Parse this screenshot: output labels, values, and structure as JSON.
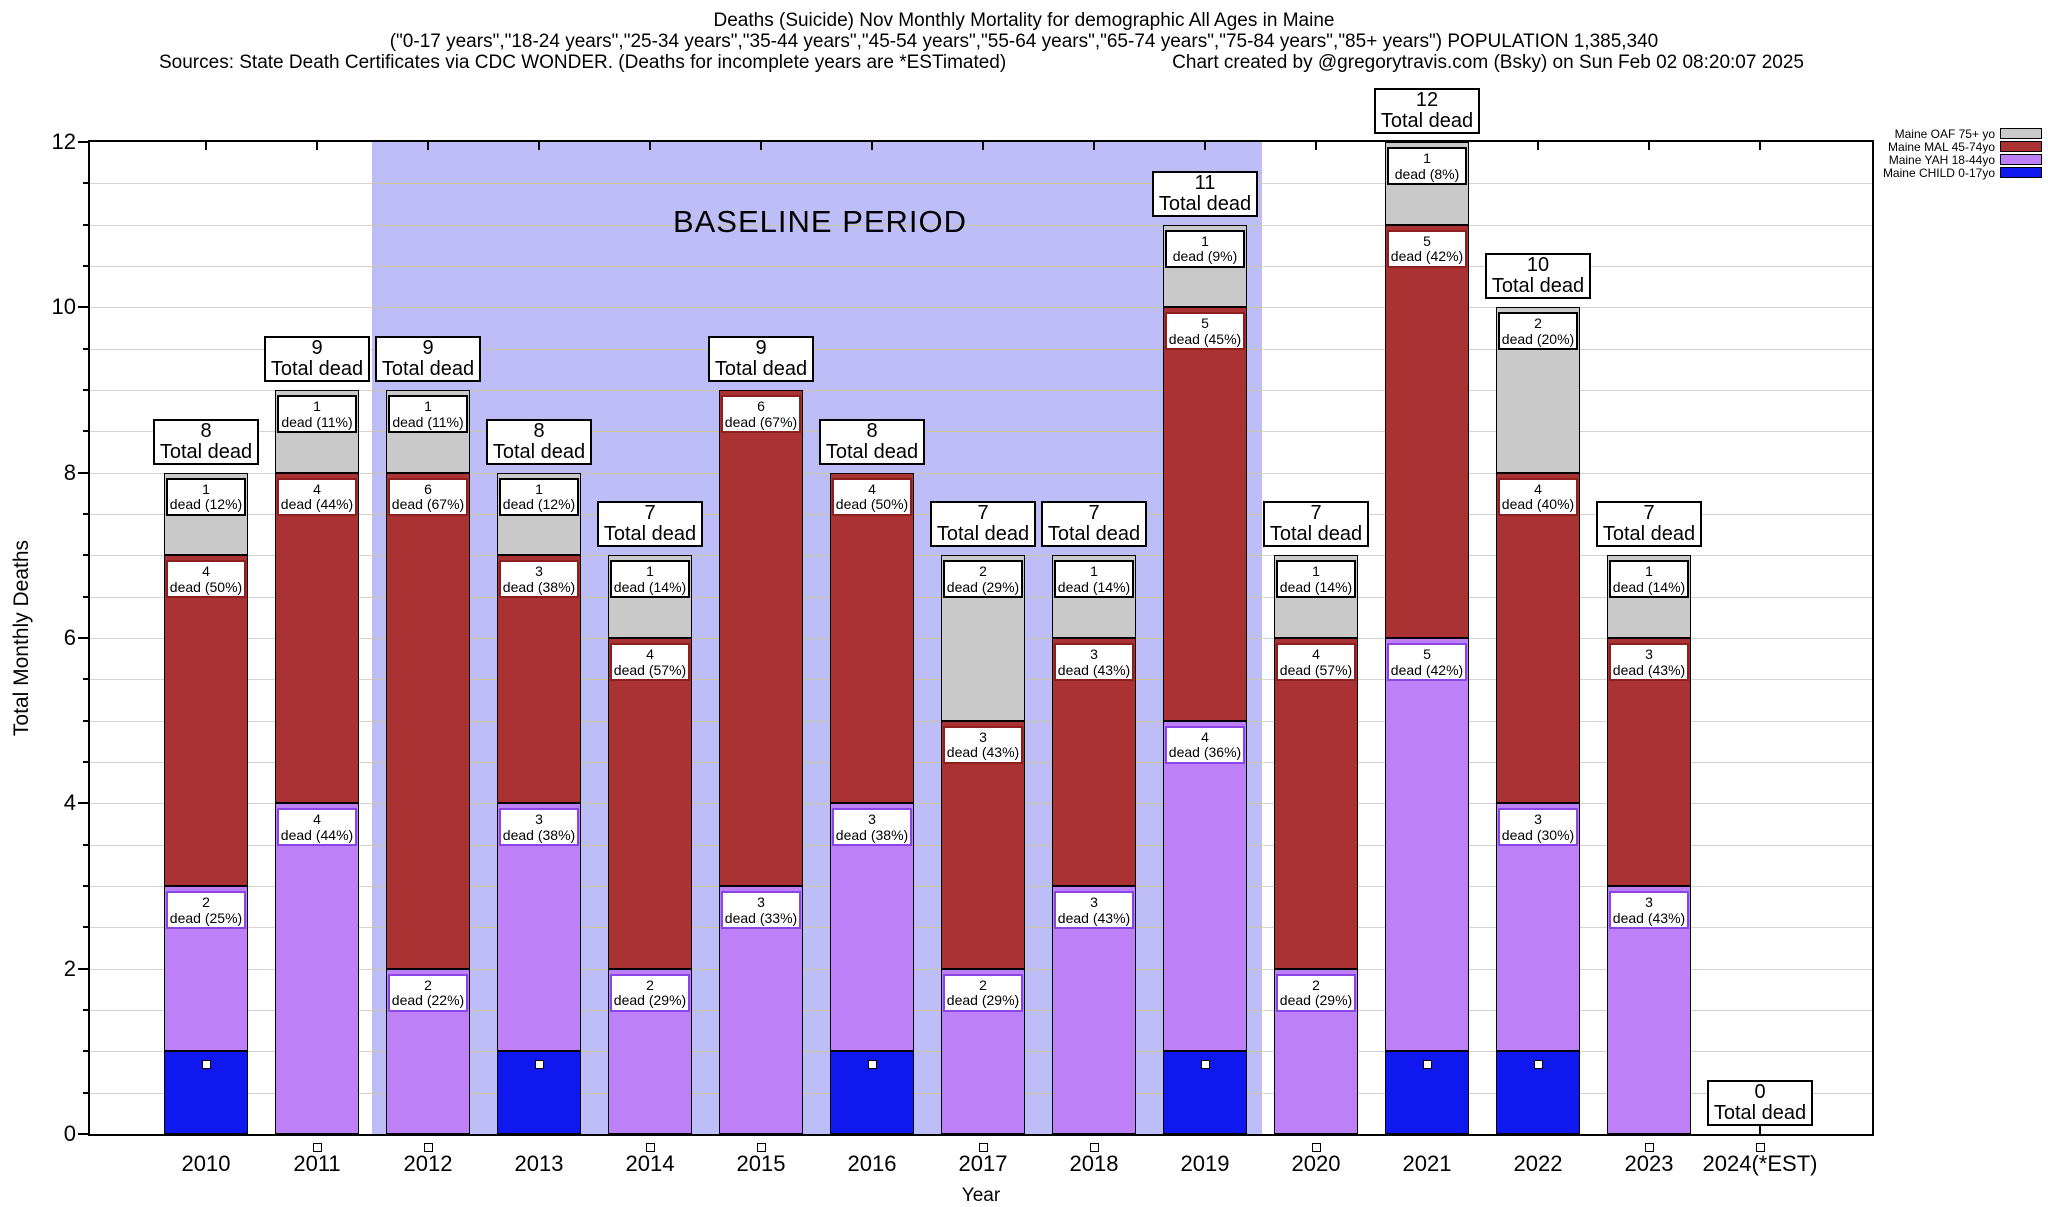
{
  "header": {
    "line1": "Deaths (Suicide) Nov Monthly Mortality for demographic All Ages in Maine",
    "line2": "(\"0-17 years\",\"18-24 years\",\"25-34 years\",\"35-44 years\",\"45-54 years\",\"55-64 years\",\"65-74 years\",\"75-84 years\",\"85+ years\") POPULATION 1,385,340",
    "line3_left": "Sources: State Death Certificates via CDC WONDER. (Deaths for incomplete years are *ESTimated)",
    "line3_right": "Chart created by @gregorytravis.com (Bsky) on Sun Feb 02 08:20:07 2025"
  },
  "legend": {
    "items": [
      {
        "key": "OAF",
        "label": "Maine OAF 75+ yo"
      },
      {
        "key": "MAL",
        "label": "Maine MAL 45-74yo"
      },
      {
        "key": "YAH",
        "label": "Maine YAH 18-44yo"
      },
      {
        "key": "CHILD",
        "label": "Maine CHILD 0-17yo"
      }
    ]
  },
  "chart_data": {
    "type": "bar",
    "subtype": "stacked",
    "title": "Deaths (Suicide) Nov Monthly Mortality for demographic All Ages in Maine",
    "xlabel": "Year",
    "ylabel": "Total Monthly Deaths",
    "ylim": [
      0,
      12
    ],
    "yticks": [
      0,
      2,
      4,
      6,
      8,
      10,
      12
    ],
    "minor_grid_step": 0.5,
    "grid": "on",
    "legend_position": "top-right",
    "total_label": "Total dead",
    "baseline": {
      "label": "BASELINE PERIOD",
      "from_year": "2012",
      "to_year": "2019"
    },
    "series_meta": {
      "CHILD": {
        "name": "Maine CHILD 0-17yo",
        "fill": "#1018f0",
        "edge": "#000000"
      },
      "YAH": {
        "name": "Maine YAH 18-44yo",
        "fill": "#bd80f7",
        "edge": "#8b45e6"
      },
      "MAL": {
        "name": "Maine MAL 45-74yo",
        "fill": "#ab3232",
        "edge": "#8e1f1f"
      },
      "OAF": {
        "name": "Maine OAF 75+ yo",
        "fill": "#c9c9c9",
        "edge": "#000000"
      }
    },
    "bars": [
      {
        "year": "2010",
        "total": 8,
        "child_marker": "in-bar",
        "segments": [
          {
            "series": "CHILD",
            "value": 1,
            "label": null
          },
          {
            "series": "YAH",
            "value": 2,
            "label": "dead (25%)"
          },
          {
            "series": "MAL",
            "value": 4,
            "label": "dead (50%)"
          },
          {
            "series": "OAF",
            "value": 1,
            "label": "dead (12%)"
          }
        ]
      },
      {
        "year": "2011",
        "total": 9,
        "child_marker": "below-axis",
        "segments": [
          {
            "series": "YAH",
            "value": 4,
            "label": "dead (44%)"
          },
          {
            "series": "MAL",
            "value": 4,
            "label": "dead (44%)"
          },
          {
            "series": "OAF",
            "value": 1,
            "label": "dead (11%)"
          }
        ]
      },
      {
        "year": "2012",
        "total": 9,
        "child_marker": "below-axis",
        "segments": [
          {
            "series": "YAH",
            "value": 2,
            "label": "dead (22%)"
          },
          {
            "series": "MAL",
            "value": 6,
            "label": "dead (67%)"
          },
          {
            "series": "OAF",
            "value": 1,
            "label": "dead (11%)"
          }
        ]
      },
      {
        "year": "2013",
        "total": 8,
        "child_marker": "in-bar",
        "segments": [
          {
            "series": "CHILD",
            "value": 1,
            "label": null
          },
          {
            "series": "YAH",
            "value": 3,
            "label": "dead (38%)"
          },
          {
            "series": "MAL",
            "value": 3,
            "label": "dead (38%)"
          },
          {
            "series": "OAF",
            "value": 1,
            "label": "dead (12%)"
          }
        ]
      },
      {
        "year": "2014",
        "total": 7,
        "child_marker": "below-axis",
        "segments": [
          {
            "series": "YAH",
            "value": 2,
            "label": "dead (29%)"
          },
          {
            "series": "MAL",
            "value": 4,
            "label": "dead (57%)"
          },
          {
            "series": "OAF",
            "value": 1,
            "label": "dead (14%)"
          }
        ]
      },
      {
        "year": "2015",
        "total": 9,
        "child_marker": "below-axis",
        "segments": [
          {
            "series": "YAH",
            "value": 3,
            "label": "dead (33%)"
          },
          {
            "series": "MAL",
            "value": 6,
            "label": "dead (67%)"
          }
        ]
      },
      {
        "year": "2016",
        "total": 8,
        "child_marker": "in-bar",
        "segments": [
          {
            "series": "CHILD",
            "value": 1,
            "label": null
          },
          {
            "series": "YAH",
            "value": 3,
            "label": "dead (38%)"
          },
          {
            "series": "MAL",
            "value": 4,
            "label": "dead (50%)"
          }
        ]
      },
      {
        "year": "2017",
        "total": 7,
        "child_marker": "below-axis",
        "segments": [
          {
            "series": "YAH",
            "value": 2,
            "label": "dead (29%)"
          },
          {
            "series": "MAL",
            "value": 3,
            "label": "dead (43%)"
          },
          {
            "series": "OAF",
            "value": 2,
            "label": "dead (29%)"
          }
        ]
      },
      {
        "year": "2018",
        "total": 7,
        "child_marker": "below-axis",
        "segments": [
          {
            "series": "YAH",
            "value": 3,
            "label": "dead (43%)"
          },
          {
            "series": "MAL",
            "value": 3,
            "label": "dead (43%)"
          },
          {
            "series": "OAF",
            "value": 1,
            "label": "dead (14%)"
          }
        ]
      },
      {
        "year": "2019",
        "total": 11,
        "child_marker": "in-bar",
        "segments": [
          {
            "series": "CHILD",
            "value": 1,
            "label": null
          },
          {
            "series": "YAH",
            "value": 4,
            "label": "dead (36%)"
          },
          {
            "series": "MAL",
            "value": 5,
            "label": "dead (45%)"
          },
          {
            "series": "OAF",
            "value": 1,
            "label": "dead (9%)"
          }
        ]
      },
      {
        "year": "2020",
        "total": 7,
        "child_marker": "below-axis",
        "segments": [
          {
            "series": "YAH",
            "value": 2,
            "label": "dead (29%)"
          },
          {
            "series": "MAL",
            "value": 4,
            "label": "dead (57%)"
          },
          {
            "series": "OAF",
            "value": 1,
            "label": "dead (14%)"
          }
        ]
      },
      {
        "year": "2021",
        "total": 12,
        "child_marker": "in-bar",
        "segments": [
          {
            "series": "CHILD",
            "value": 1,
            "label": null
          },
          {
            "series": "YAH",
            "value": 5,
            "label": "dead (42%)"
          },
          {
            "series": "MAL",
            "value": 5,
            "label": "dead (42%)"
          },
          {
            "series": "OAF",
            "value": 1,
            "label": "dead (8%)"
          }
        ]
      },
      {
        "year": "2022",
        "total": 10,
        "child_marker": "in-bar",
        "segments": [
          {
            "series": "CHILD",
            "value": 1,
            "label": null
          },
          {
            "series": "YAH",
            "value": 3,
            "label": "dead (30%)"
          },
          {
            "series": "MAL",
            "value": 4,
            "label": "dead (40%)"
          },
          {
            "series": "OAF",
            "value": 2,
            "label": "dead (20%)"
          }
        ]
      },
      {
        "year": "2023",
        "total": 7,
        "child_marker": "below-axis",
        "segments": [
          {
            "series": "YAH",
            "value": 3,
            "label": "dead (43%)"
          },
          {
            "series": "MAL",
            "value": 3,
            "label": "dead (43%)"
          },
          {
            "series": "OAF",
            "value": 1,
            "label": "dead (14%)"
          }
        ]
      },
      {
        "year": "2024(*EST)",
        "total": 0,
        "child_marker": "below-axis",
        "segments": []
      }
    ]
  }
}
